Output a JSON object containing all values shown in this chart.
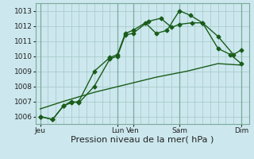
{
  "bg_color": "#cce8ee",
  "grid_color": "#aacccc",
  "line_color": "#1a5c1a",
  "marker": "D",
  "markersize": 2.5,
  "linewidth": 1.0,
  "xlabel": "Pression niveau de la mer( hPa )",
  "xlabel_fontsize": 8,
  "tick_fontsize": 6.5,
  "ylim": [
    1005.5,
    1013.5
  ],
  "yticks": [
    1006,
    1007,
    1008,
    1009,
    1010,
    1011,
    1012,
    1013
  ],
  "xlim": [
    -0.3,
    13.5
  ],
  "x_tick_positions": [
    0,
    5,
    6,
    9,
    13
  ],
  "x_tick_labels": [
    "Jeu",
    "Lun",
    "Ven",
    "Sam",
    "Dim"
  ],
  "vlines": [
    0,
    5,
    6,
    9,
    13
  ],
  "series": [
    {
      "x": [
        0,
        0.8,
        1.5,
        2.0,
        2.5,
        3.5,
        4.5,
        5.0,
        5.5,
        6.0,
        6.8,
        7.5,
        8.2,
        9.0,
        9.7,
        10.5,
        11.5,
        12.5,
        13.0
      ],
      "y": [
        1006.0,
        1005.8,
        1006.7,
        1006.9,
        1007.0,
        1009.0,
        1009.9,
        1010.1,
        1011.5,
        1011.7,
        1012.2,
        1011.5,
        1011.7,
        1013.0,
        1012.7,
        1012.2,
        1011.3,
        1010.1,
        1010.4
      ],
      "has_markers": true
    },
    {
      "x": [
        0,
        0.8,
        1.5,
        2.0,
        2.5,
        3.5,
        4.5,
        5.0,
        5.5,
        6.0,
        7.0,
        7.8,
        8.5,
        9.0,
        9.8,
        10.5,
        11.5,
        12.3,
        13.0
      ],
      "y": [
        1006.0,
        1005.8,
        1006.7,
        1007.0,
        1006.9,
        1008.0,
        1009.8,
        1010.0,
        1011.4,
        1011.5,
        1012.3,
        1012.5,
        1011.9,
        1012.1,
        1012.2,
        1012.2,
        1010.5,
        1010.1,
        1009.5
      ],
      "has_markers": true
    },
    {
      "x": [
        0,
        1.5,
        3.5,
        5.5,
        7.5,
        9.5,
        11.5,
        13.0
      ],
      "y": [
        1006.5,
        1007.0,
        1007.6,
        1008.1,
        1008.6,
        1009.0,
        1009.5,
        1009.4
      ],
      "has_markers": false
    }
  ]
}
